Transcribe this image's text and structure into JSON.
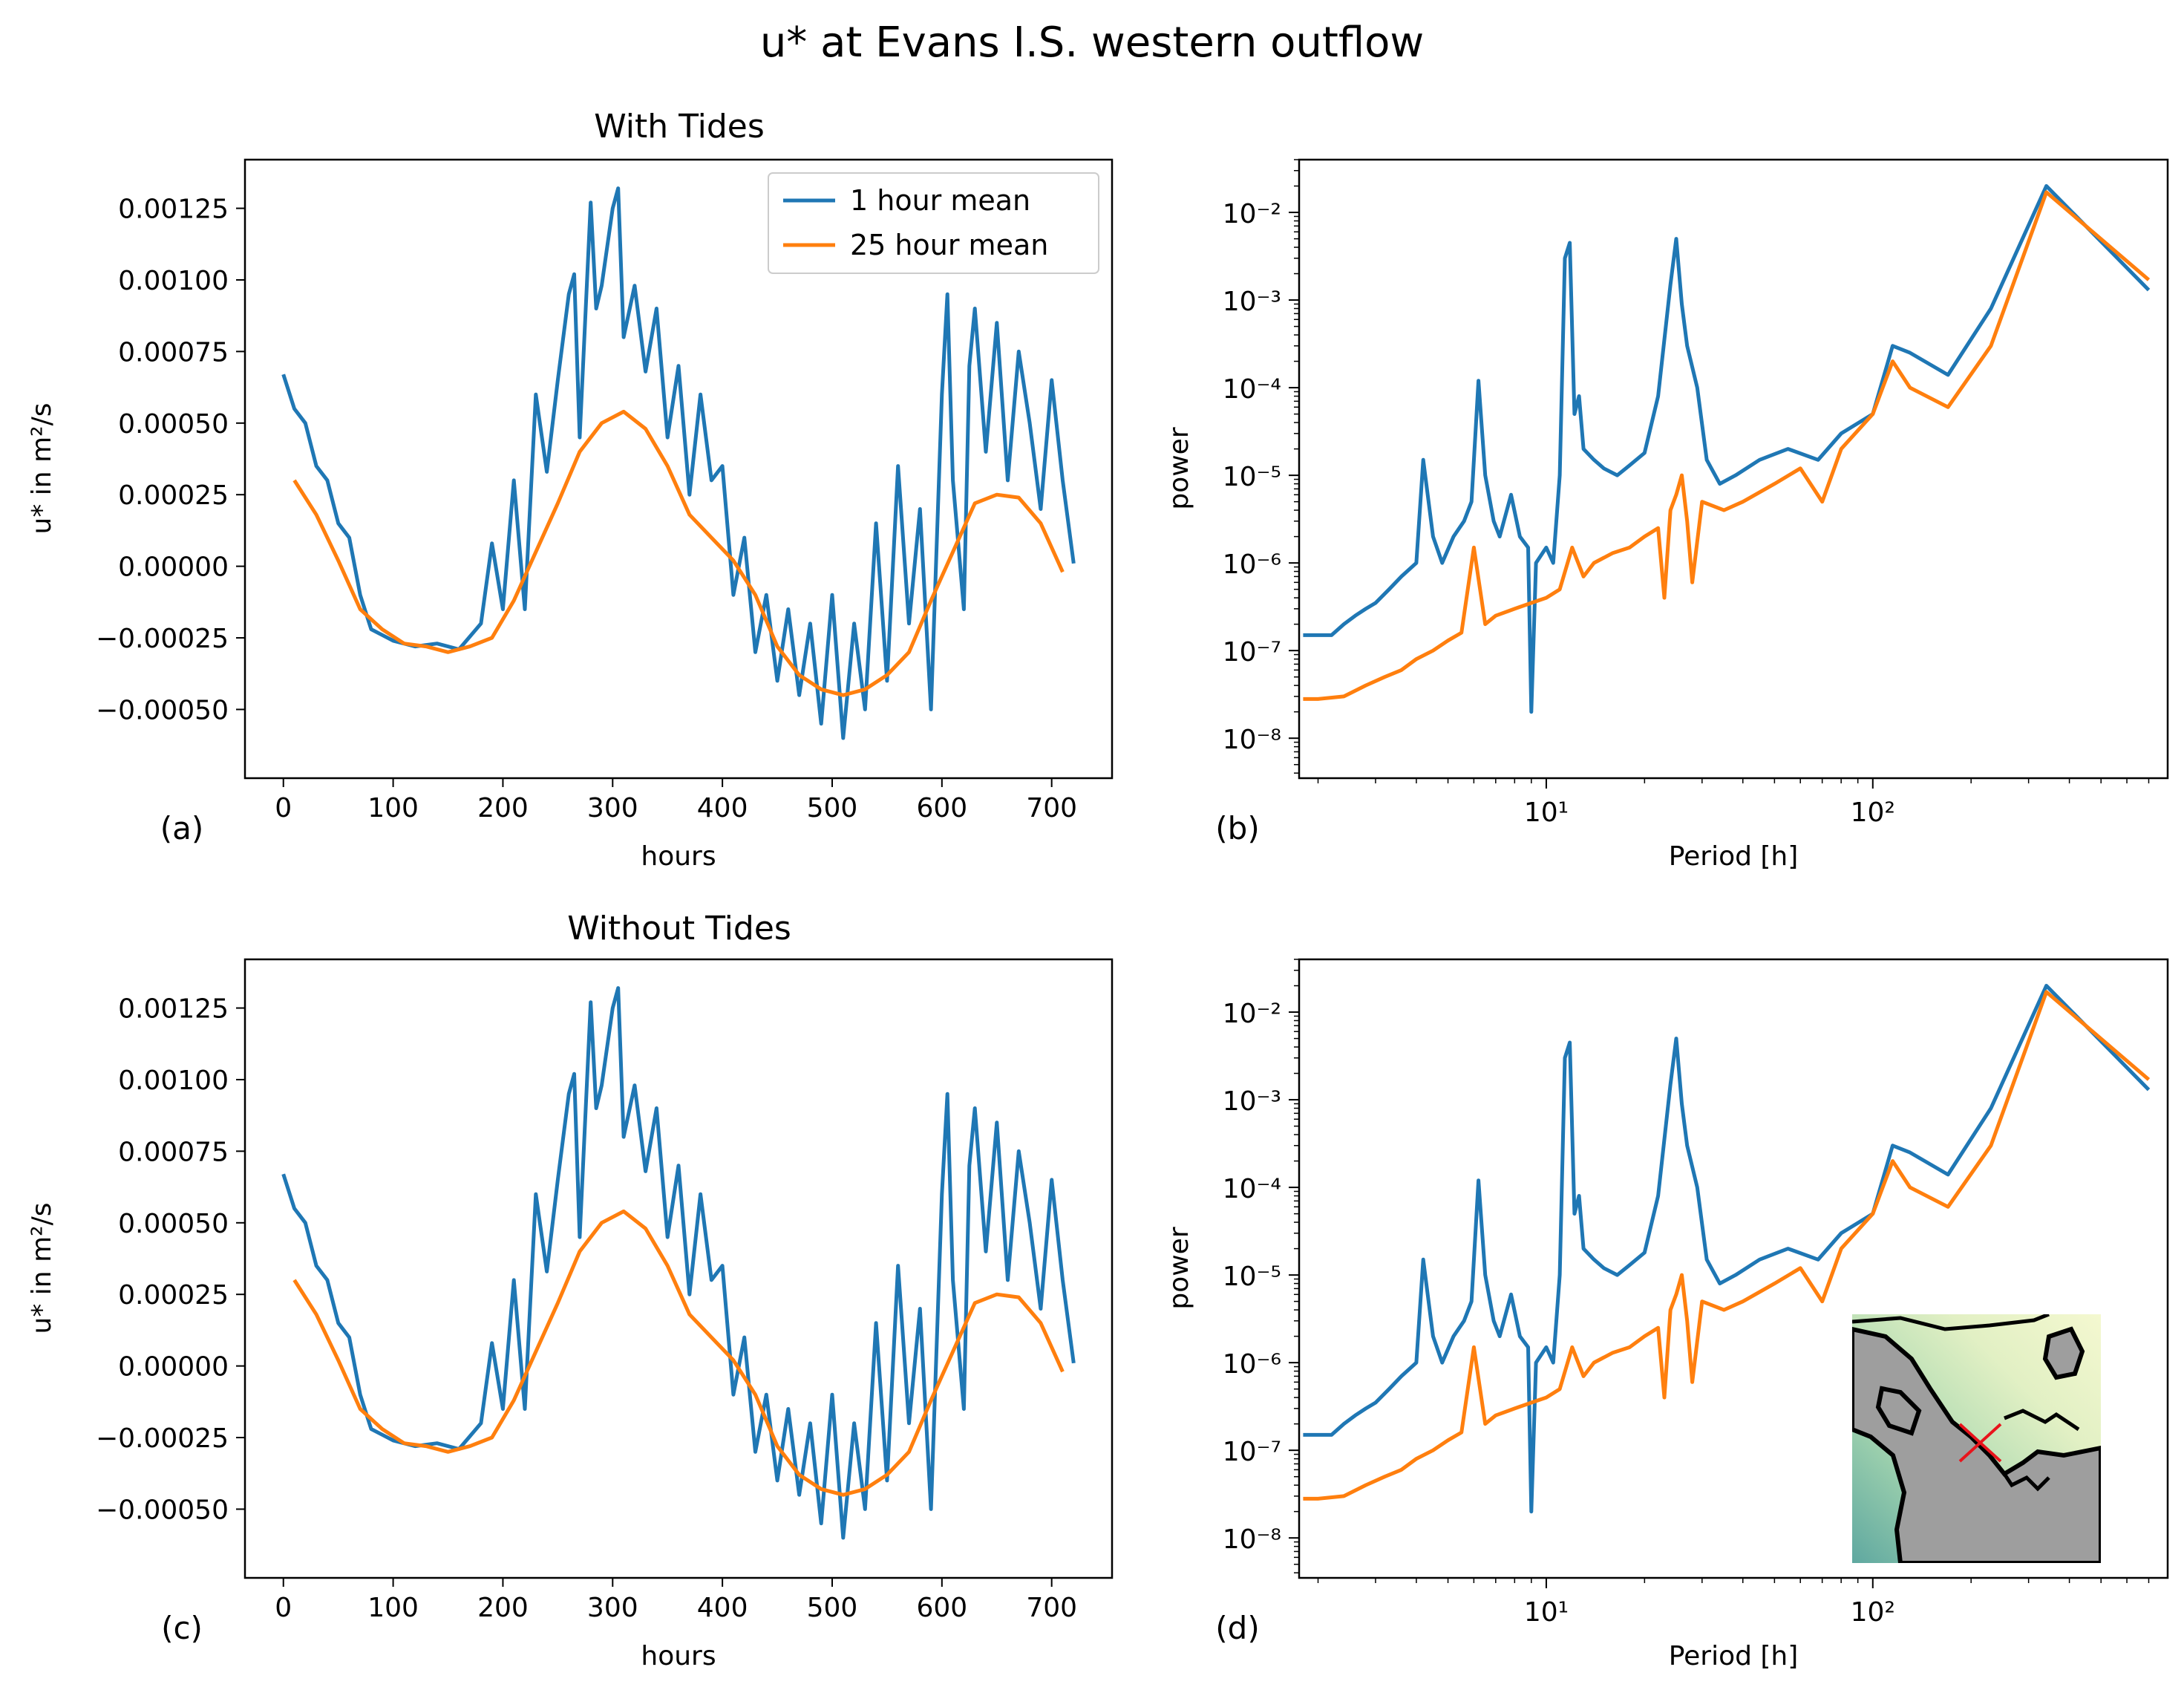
{
  "figure": {
    "title": "u* at Evans I.S. western outflow",
    "series_colors": {
      "hourly": "#1f77b4",
      "daily25": "#ff7f0e"
    }
  },
  "legend": {
    "items": [
      "1 hour mean",
      "25 hour mean"
    ]
  },
  "panels": [
    {
      "id": "a",
      "label": "(a)",
      "title": "With Tides",
      "xlabel": "hours",
      "ylabel": "u* in m²/s",
      "xticks": [
        "0",
        "100",
        "200",
        "300",
        "400",
        "500",
        "600",
        "700"
      ],
      "yticks": [
        "0.00125",
        "0.00100",
        "0.00075",
        "0.00050",
        "0.00025",
        "0.00000",
        "−0.00025",
        "−0.00050"
      ]
    },
    {
      "id": "b",
      "label": "(b)",
      "title": "",
      "xlabel": "Period [h]",
      "ylabel": "power",
      "xticks": [
        "10¹",
        "10²"
      ],
      "yticks": [
        "10⁻²",
        "10⁻³",
        "10⁻⁴",
        "10⁻⁵",
        "10⁻⁶",
        "10⁻⁷",
        "10⁻⁸"
      ]
    },
    {
      "id": "c",
      "label": "(c)",
      "title": "Without Tides",
      "xlabel": "hours",
      "ylabel": "u* in m²/s",
      "xticks": [
        "0",
        "100",
        "200",
        "300",
        "400",
        "500",
        "600",
        "700"
      ],
      "yticks": [
        "0.00125",
        "0.00100",
        "0.00075",
        "0.00050",
        "0.00025",
        "0.00000",
        "−0.00025",
        "−0.00050"
      ]
    },
    {
      "id": "d",
      "label": "(d)",
      "title": "",
      "xlabel": "Period [h]",
      "ylabel": "power",
      "xticks": [
        "10¹",
        "10²"
      ],
      "yticks": [
        "10⁻²",
        "10⁻³",
        "10⁻⁴",
        "10⁻⁵",
        "10⁻⁶",
        "10⁻⁷",
        "10⁻⁸"
      ]
    }
  ],
  "chart_data": [
    {
      "type": "line",
      "panel": "a",
      "title": "With Tides",
      "xlabel": "hours",
      "ylabel": "u* in m²/s",
      "xlim": [
        -35,
        755
      ],
      "ylim": [
        -0.00074,
        0.00142
      ],
      "series": [
        {
          "name": "1 hour mean",
          "x": [
            0,
            10,
            20,
            30,
            40,
            50,
            60,
            70,
            80,
            90,
            100,
            120,
            140,
            160,
            180,
            190,
            200,
            210,
            220,
            230,
            240,
            250,
            260,
            265,
            270,
            280,
            285,
            290,
            300,
            305,
            310,
            320,
            330,
            340,
            350,
            360,
            370,
            380,
            390,
            400,
            410,
            420,
            430,
            440,
            450,
            460,
            470,
            480,
            490,
            500,
            510,
            520,
            530,
            540,
            550,
            560,
            570,
            580,
            590,
            600,
            605,
            610,
            620,
            625,
            630,
            640,
            650,
            660,
            670,
            680,
            690,
            700,
            710,
            720
          ],
          "y": [
            0.00067,
            0.00055,
            0.0005,
            0.00035,
            0.0003,
            0.00015,
            0.0001,
            -0.0001,
            -0.00022,
            -0.00024,
            -0.00026,
            -0.00028,
            -0.00027,
            -0.00029,
            -0.0002,
            8e-05,
            -0.00015,
            0.0003,
            -0.00015,
            0.0006,
            0.00033,
            0.00065,
            0.00095,
            0.00102,
            0.00045,
            0.00127,
            0.0009,
            0.00098,
            0.00125,
            0.00132,
            0.0008,
            0.00098,
            0.00068,
            0.0009,
            0.00045,
            0.0007,
            0.00025,
            0.0006,
            0.0003,
            0.00035,
            -0.0001,
            0.0001,
            -0.0003,
            -0.0001,
            -0.0004,
            -0.00015,
            -0.00045,
            -0.0002,
            -0.00055,
            -0.0001,
            -0.0006,
            -0.0002,
            -0.0005,
            0.00015,
            -0.0004,
            0.00035,
            -0.0002,
            0.0002,
            -0.0005,
            0.0006,
            0.00095,
            0.0003,
            -0.00015,
            0.0007,
            0.0009,
            0.0004,
            0.00085,
            0.0003,
            0.00075,
            0.0005,
            0.0002,
            0.00065,
            0.0003,
            1e-05
          ]
        },
        {
          "name": "25 hour mean",
          "x": [
            10,
            30,
            50,
            70,
            90,
            110,
            130,
            150,
            170,
            190,
            210,
            230,
            250,
            270,
            290,
            310,
            330,
            350,
            370,
            390,
            410,
            430,
            450,
            470,
            490,
            510,
            530,
            550,
            570,
            590,
            610,
            630,
            650,
            670,
            690,
            710
          ],
          "y": [
            0.0003,
            0.00018,
            2e-05,
            -0.00015,
            -0.00022,
            -0.00027,
            -0.00028,
            -0.0003,
            -0.00028,
            -0.00025,
            -0.00012,
            5e-05,
            0.00022,
            0.0004,
            0.0005,
            0.00054,
            0.00048,
            0.00035,
            0.00018,
            0.0001,
            2e-05,
            -0.0001,
            -0.00028,
            -0.00038,
            -0.00043,
            -0.00045,
            -0.00043,
            -0.00038,
            -0.0003,
            -0.00012,
            5e-05,
            0.00022,
            0.00025,
            0.00024,
            0.00015,
            -2e-05
          ]
        }
      ]
    },
    {
      "type": "line",
      "panel": "b",
      "xlabel": "Period [h]",
      "ylabel": "power",
      "xscale": "log",
      "yscale": "log",
      "xlim": [
        1.75,
        800
      ],
      "ylim": [
        3.5e-09,
        0.04
      ],
      "series": [
        {
          "name": "1 hour mean",
          "x": [
            1.8,
            2,
            2.2,
            2.4,
            2.6,
            2.8,
            3,
            3.3,
            3.6,
            4,
            4.2,
            4.5,
            4.8,
            5.2,
            5.6,
            5.9,
            6.2,
            6.5,
            6.9,
            7.2,
            7.8,
            8.3,
            8.8,
            9,
            9.3,
            10,
            10.5,
            11,
            11.4,
            11.8,
            12.2,
            12.6,
            13,
            14,
            15,
            16.5,
            18,
            20,
            22,
            24,
            25,
            26,
            27,
            29,
            31,
            34,
            38,
            45,
            55,
            68,
            80,
            100,
            115,
            130,
            170,
            230,
            340,
            700
          ],
          "y": [
            1.5e-07,
            1.5e-07,
            1.5e-07,
            2e-07,
            2.5e-07,
            3e-07,
            3.5e-07,
            5e-07,
            7e-07,
            1e-06,
            1.5e-05,
            2e-06,
            1e-06,
            2e-06,
            3e-06,
            5e-06,
            0.00012,
            1e-05,
            3e-06,
            2e-06,
            6e-06,
            2e-06,
            1.5e-06,
            2e-08,
            1e-06,
            1.5e-06,
            1e-06,
            1e-05,
            0.003,
            0.0045,
            5e-05,
            8e-05,
            2e-05,
            1.5e-05,
            1.2e-05,
            1e-05,
            1.3e-05,
            1.8e-05,
            8e-05,
            0.0015,
            0.005,
            0.0009,
            0.0003,
            0.0001,
            1.5e-05,
            8e-06,
            1e-05,
            1.5e-05,
            2e-05,
            1.5e-05,
            3e-05,
            5e-05,
            0.0003,
            0.00025,
            0.00014,
            0.0008,
            0.02,
            0.0013
          ]
        },
        {
          "name": "25 hour mean",
          "x": [
            1.8,
            2,
            2.4,
            2.8,
            3.2,
            3.6,
            4,
            4.5,
            5,
            5.5,
            6,
            6.5,
            7,
            8,
            9,
            10,
            11,
            12,
            13,
            14,
            16,
            18,
            20,
            22,
            23,
            24,
            25,
            26,
            27,
            28,
            30,
            35,
            40,
            50,
            60,
            70,
            80,
            100,
            115,
            130,
            170,
            230,
            340,
            700
          ],
          "y": [
            2.8e-08,
            2.8e-08,
            3e-08,
            4e-08,
            5e-08,
            6e-08,
            8e-08,
            1e-07,
            1.3e-07,
            1.6e-07,
            1.5e-06,
            2e-07,
            2.5e-07,
            3e-07,
            3.5e-07,
            4e-07,
            5e-07,
            1.5e-06,
            7e-07,
            1e-06,
            1.3e-06,
            1.5e-06,
            2e-06,
            2.5e-06,
            4e-07,
            4e-06,
            6e-06,
            1e-05,
            3e-06,
            6e-07,
            5e-06,
            4e-06,
            5e-06,
            8e-06,
            1.2e-05,
            5e-06,
            2e-05,
            5e-05,
            0.0002,
            0.0001,
            6e-05,
            0.0003,
            0.017,
            0.0017
          ]
        }
      ]
    },
    {
      "type": "line",
      "panel": "c",
      "title": "Without Tides",
      "xlabel": "hours",
      "ylabel": "u* in m²/s",
      "xlim": [
        -35,
        755
      ],
      "ylim": [
        -0.00074,
        0.00142
      ],
      "series": [
        {
          "name": "1 hour mean",
          "x": [
            0,
            10,
            20,
            30,
            40,
            50,
            60,
            70,
            80,
            90,
            100,
            120,
            140,
            160,
            180,
            190,
            200,
            210,
            220,
            230,
            240,
            250,
            260,
            265,
            270,
            280,
            285,
            290,
            300,
            305,
            310,
            320,
            330,
            340,
            350,
            360,
            370,
            380,
            390,
            400,
            410,
            420,
            430,
            440,
            450,
            460,
            470,
            480,
            490,
            500,
            510,
            520,
            530,
            540,
            550,
            560,
            570,
            580,
            590,
            600,
            605,
            610,
            620,
            625,
            630,
            640,
            650,
            660,
            670,
            680,
            690,
            700,
            710,
            720
          ],
          "y": [
            0.00067,
            0.00055,
            0.0005,
            0.00035,
            0.0003,
            0.00015,
            0.0001,
            -0.0001,
            -0.00022,
            -0.00024,
            -0.00026,
            -0.00028,
            -0.00027,
            -0.00029,
            -0.0002,
            8e-05,
            -0.00015,
            0.0003,
            -0.00015,
            0.0006,
            0.00033,
            0.00065,
            0.00095,
            0.00102,
            0.00045,
            0.00127,
            0.0009,
            0.00098,
            0.00125,
            0.00132,
            0.0008,
            0.00098,
            0.00068,
            0.0009,
            0.00045,
            0.0007,
            0.00025,
            0.0006,
            0.0003,
            0.00035,
            -0.0001,
            0.0001,
            -0.0003,
            -0.0001,
            -0.0004,
            -0.00015,
            -0.00045,
            -0.0002,
            -0.00055,
            -0.0001,
            -0.0006,
            -0.0002,
            -0.0005,
            0.00015,
            -0.0004,
            0.00035,
            -0.0002,
            0.0002,
            -0.0005,
            0.0006,
            0.00095,
            0.0003,
            -0.00015,
            0.0007,
            0.0009,
            0.0004,
            0.00085,
            0.0003,
            0.00075,
            0.0005,
            0.0002,
            0.00065,
            0.0003,
            1e-05
          ]
        },
        {
          "name": "25 hour mean",
          "x": [
            10,
            30,
            50,
            70,
            90,
            110,
            130,
            150,
            170,
            190,
            210,
            230,
            250,
            270,
            290,
            310,
            330,
            350,
            370,
            390,
            410,
            430,
            450,
            470,
            490,
            510,
            530,
            550,
            570,
            590,
            610,
            630,
            650,
            670,
            690,
            710
          ],
          "y": [
            0.0003,
            0.00018,
            2e-05,
            -0.00015,
            -0.00022,
            -0.00027,
            -0.00028,
            -0.0003,
            -0.00028,
            -0.00025,
            -0.00012,
            5e-05,
            0.00022,
            0.0004,
            0.0005,
            0.00054,
            0.00048,
            0.00035,
            0.00018,
            0.0001,
            2e-05,
            -0.0001,
            -0.00028,
            -0.00038,
            -0.00043,
            -0.00045,
            -0.00043,
            -0.00038,
            -0.0003,
            -0.00012,
            5e-05,
            0.00022,
            0.00025,
            0.00024,
            0.00015,
            -2e-05
          ]
        }
      ]
    },
    {
      "type": "line",
      "panel": "d",
      "xlabel": "Period [h]",
      "ylabel": "power",
      "xscale": "log",
      "yscale": "log",
      "xlim": [
        1.75,
        800
      ],
      "ylim": [
        3.5e-09,
        0.04
      ],
      "series": [
        {
          "name": "1 hour mean",
          "x": [
            1.8,
            2,
            2.2,
            2.4,
            2.6,
            2.8,
            3,
            3.3,
            3.6,
            4,
            4.2,
            4.5,
            4.8,
            5.2,
            5.6,
            5.9,
            6.2,
            6.5,
            6.9,
            7.2,
            7.8,
            8.3,
            8.8,
            9,
            9.3,
            10,
            10.5,
            11,
            11.4,
            11.8,
            12.2,
            12.6,
            13,
            14,
            15,
            16.5,
            18,
            20,
            22,
            24,
            25,
            26,
            27,
            29,
            31,
            34,
            38,
            45,
            55,
            68,
            80,
            100,
            115,
            130,
            170,
            230,
            340,
            700
          ],
          "y": [
            1.5e-07,
            1.5e-07,
            1.5e-07,
            2e-07,
            2.5e-07,
            3e-07,
            3.5e-07,
            5e-07,
            7e-07,
            1e-06,
            1.5e-05,
            2e-06,
            1e-06,
            2e-06,
            3e-06,
            5e-06,
            0.00012,
            1e-05,
            3e-06,
            2e-06,
            6e-06,
            2e-06,
            1.5e-06,
            2e-08,
            1e-06,
            1.5e-06,
            1e-06,
            1e-05,
            0.003,
            0.0045,
            5e-05,
            8e-05,
            2e-05,
            1.5e-05,
            1.2e-05,
            1e-05,
            1.3e-05,
            1.8e-05,
            8e-05,
            0.0015,
            0.005,
            0.0009,
            0.0003,
            0.0001,
            1.5e-05,
            8e-06,
            1e-05,
            1.5e-05,
            2e-05,
            1.5e-05,
            3e-05,
            5e-05,
            0.0003,
            0.00025,
            0.00014,
            0.0008,
            0.02,
            0.0013
          ]
        },
        {
          "name": "25 hour mean",
          "x": [
            1.8,
            2,
            2.4,
            2.8,
            3.2,
            3.6,
            4,
            4.5,
            5,
            5.5,
            6,
            6.5,
            7,
            8,
            9,
            10,
            11,
            12,
            13,
            14,
            16,
            18,
            20,
            22,
            23,
            24,
            25,
            26,
            27,
            28,
            30,
            35,
            40,
            50,
            60,
            70,
            80,
            100,
            115,
            130,
            170,
            230,
            340,
            700
          ],
          "y": [
            2.8e-08,
            2.8e-08,
            3e-08,
            4e-08,
            5e-08,
            6e-08,
            8e-08,
            1e-07,
            1.3e-07,
            1.6e-07,
            1.5e-06,
            2e-07,
            2.5e-07,
            3e-07,
            3.5e-07,
            4e-07,
            5e-07,
            1.5e-06,
            7e-07,
            1e-06,
            1.3e-06,
            1.5e-06,
            2e-06,
            2.5e-06,
            4e-07,
            4e-06,
            6e-06,
            1e-05,
            3e-06,
            6e-07,
            5e-06,
            4e-06,
            5e-06,
            8e-06,
            1.2e-05,
            5e-06,
            2e-05,
            5e-05,
            0.0002,
            0.0001,
            6e-05,
            0.0003,
            0.017,
            0.0017
          ]
        }
      ]
    }
  ]
}
